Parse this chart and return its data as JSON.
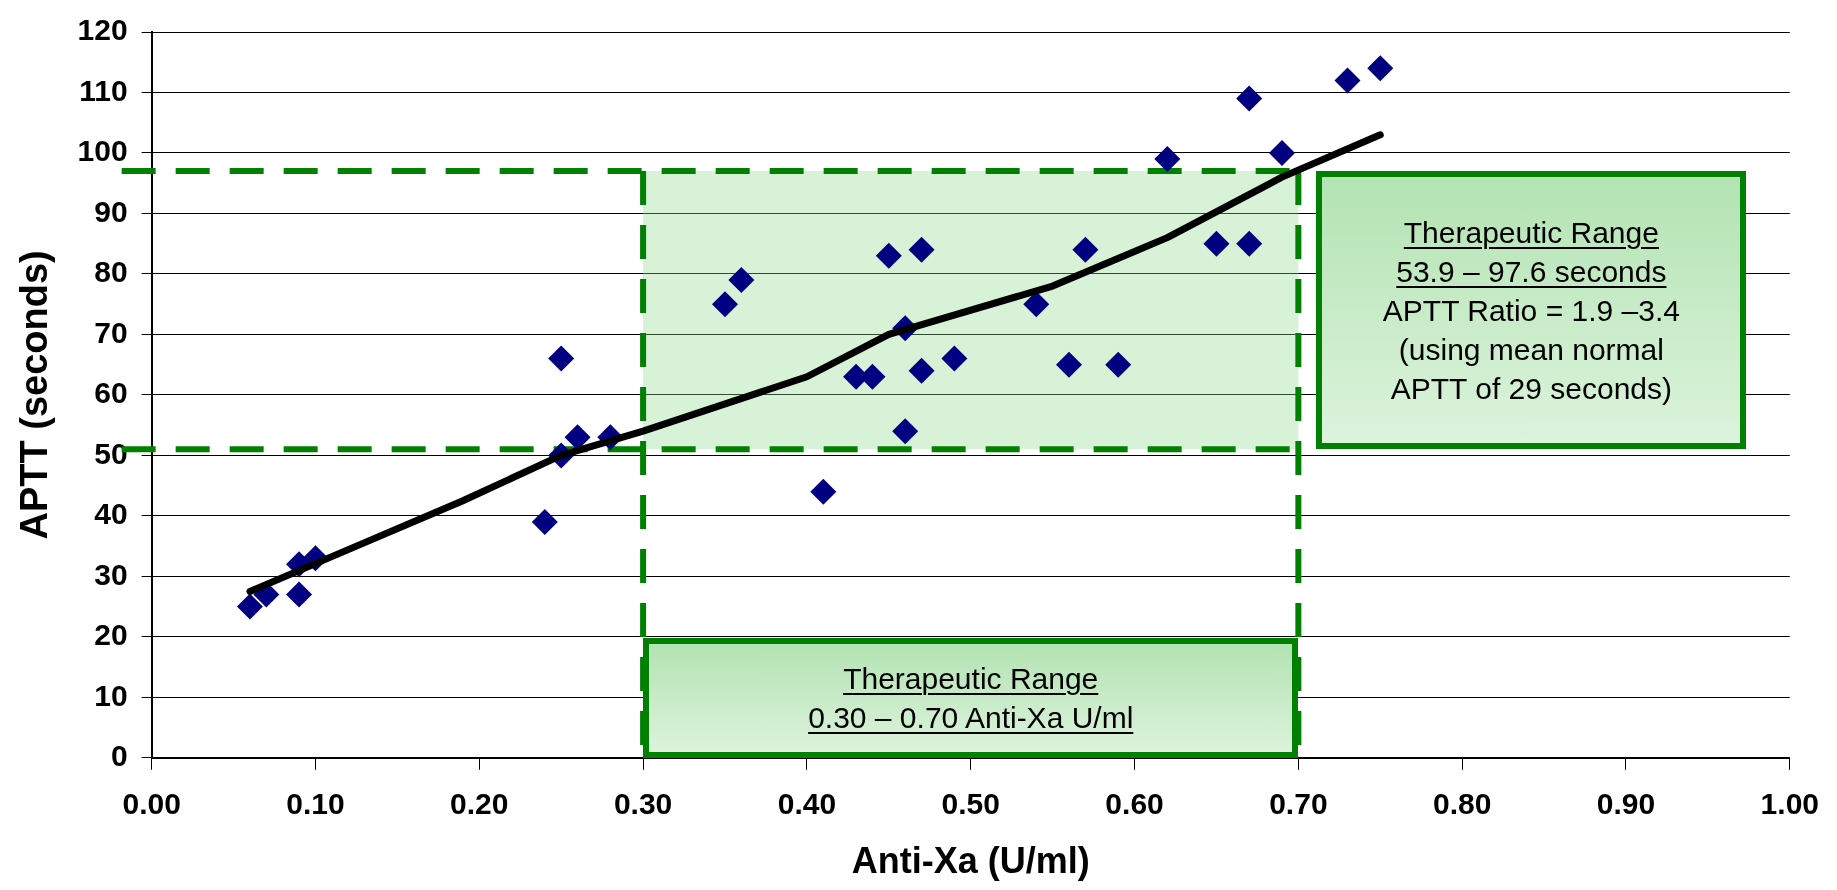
{
  "chart_data": {
    "type": "scatter",
    "xlabel": "Anti-Xa (U/ml)",
    "ylabel": "APTT (seconds)",
    "xlim": [
      0,
      1
    ],
    "xticks": [
      {
        "value": 0,
        "label": "0.00"
      },
      {
        "value": 0.1,
        "label": "0.10"
      },
      {
        "value": 0.2,
        "label": "0.20"
      },
      {
        "value": 0.3,
        "label": "0.30"
      },
      {
        "value": 0.4,
        "label": "0.40"
      },
      {
        "value": 0.5,
        "label": "0.50"
      },
      {
        "value": 0.6,
        "label": "0.60"
      },
      {
        "value": 0.7,
        "label": "0.70"
      },
      {
        "value": 0.8,
        "label": "0.80"
      },
      {
        "value": 0.9,
        "label": "0.90"
      },
      {
        "value": 1,
        "label": "1.00"
      }
    ],
    "ylim": [
      0,
      120
    ],
    "yticks": [
      0,
      10,
      20,
      30,
      40,
      50,
      60,
      70,
      80,
      90,
      100,
      110,
      120
    ],
    "grid": "y",
    "legend": false,
    "marker": "diamond",
    "series": [
      {
        "type": "scatter",
        "color": "#000080",
        "x": [
          0.06,
          0.07,
          0.09,
          0.09,
          0.1,
          0.24,
          0.25,
          0.25,
          0.26,
          0.28,
          0.35,
          0.36,
          0.41,
          0.43,
          0.44,
          0.45,
          0.46,
          0.46,
          0.47,
          0.47,
          0.49,
          0.54,
          0.56,
          0.57,
          0.59,
          0.62,
          0.65,
          0.67,
          0.67,
          0.69,
          0.73,
          0.75
        ],
        "values": [
          25,
          27,
          32,
          27,
          33,
          39,
          66,
          50,
          53,
          53,
          75,
          79,
          44,
          63,
          63,
          83,
          71,
          54,
          84,
          64,
          66,
          75,
          65,
          84,
          65,
          99,
          85,
          109,
          85,
          100,
          112,
          114
        ]
      },
      {
        "type": "line",
        "color": "#000000",
        "marker": "none",
        "x": [
          0.06,
          0.125,
          0.19,
          0.25,
          0.3,
          0.4,
          0.45,
          0.55,
          0.62,
          0.69,
          0.75
        ],
        "values": [
          27.5,
          35,
          42.5,
          50,
          54,
          63,
          70,
          78,
          86,
          96,
          103
        ]
      }
    ],
    "ref_lines": [
      {
        "axis": "x",
        "value": 0.3,
        "color": "#008000",
        "line_style": "dashed"
      },
      {
        "axis": "x",
        "value": 0.7,
        "color": "#008000",
        "line_style": "dashed"
      },
      {
        "axis": "y",
        "value": 51,
        "color": "#008000",
        "line_style": "dashed"
      },
      {
        "axis": "y",
        "value": 97,
        "color": "#008000",
        "line_style": "dashed"
      }
    ],
    "bands": [
      {
        "axis": "y",
        "from": 51,
        "to": 97,
        "color": "#8cd98c"
      }
    ],
    "annotations": [
      "Therapeutic Range\n53.9 – 97.6 seconds",
      "APTT Ratio = 1.9 –3.4\n(using mean normal\nAPTT of 29 seconds)",
      "Therapeutic Range\n0.30 – 0.70 Anti-Xa U/ml"
    ]
  }
}
